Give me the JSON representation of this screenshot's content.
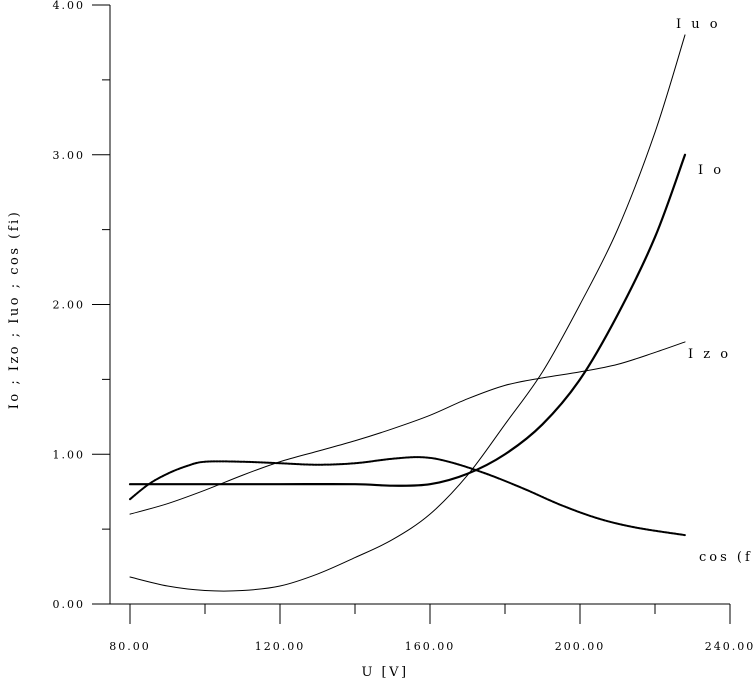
{
  "chart_data": {
    "type": "line",
    "title": "",
    "xlabel": "U [V]",
    "ylabel": "Io ; Izo ; Iuo ; cos (fi)",
    "xlim": [
      80,
      240
    ],
    "ylim": [
      0,
      4
    ],
    "xticks": [
      80,
      120,
      160,
      200,
      240
    ],
    "xtick_labels": [
      "80.00",
      "120.00",
      "160.00",
      "200.00",
      "240.00"
    ],
    "yticks": [
      0,
      1,
      2,
      3,
      4
    ],
    "ytick_labels": [
      "0.00",
      "1.00",
      "2.00",
      "3.00",
      "4.00"
    ],
    "grid": false,
    "series": [
      {
        "name": "Iuo",
        "width": "thin",
        "points": [
          [
            80,
            0.18
          ],
          [
            90,
            0.12
          ],
          [
            100,
            0.09
          ],
          [
            110,
            0.09
          ],
          [
            120,
            0.12
          ],
          [
            130,
            0.2
          ],
          [
            140,
            0.31
          ],
          [
            150,
            0.43
          ],
          [
            160,
            0.6
          ],
          [
            170,
            0.86
          ],
          [
            180,
            1.2
          ],
          [
            190,
            1.55
          ],
          [
            200,
            2.0
          ],
          [
            210,
            2.5
          ],
          [
            220,
            3.15
          ],
          [
            228,
            3.8
          ]
        ]
      },
      {
        "name": "Io",
        "width": "thick",
        "points": [
          [
            80,
            0.8
          ],
          [
            100,
            0.8
          ],
          [
            120,
            0.8
          ],
          [
            140,
            0.8
          ],
          [
            150,
            0.79
          ],
          [
            160,
            0.8
          ],
          [
            170,
            0.87
          ],
          [
            180,
            1.0
          ],
          [
            190,
            1.2
          ],
          [
            200,
            1.5
          ],
          [
            210,
            1.93
          ],
          [
            220,
            2.45
          ],
          [
            228,
            3.0
          ]
        ]
      },
      {
        "name": "Izo",
        "width": "thin",
        "points": [
          [
            80,
            0.6
          ],
          [
            90,
            0.67
          ],
          [
            100,
            0.76
          ],
          [
            110,
            0.86
          ],
          [
            120,
            0.95
          ],
          [
            130,
            1.02
          ],
          [
            140,
            1.09
          ],
          [
            150,
            1.17
          ],
          [
            160,
            1.26
          ],
          [
            170,
            1.37
          ],
          [
            180,
            1.46
          ],
          [
            190,
            1.51
          ],
          [
            200,
            1.55
          ],
          [
            210,
            1.6
          ],
          [
            220,
            1.68
          ],
          [
            228,
            1.75
          ]
        ]
      },
      {
        "name": "cos (fi)",
        "width": "dotted-thick",
        "points": [
          [
            80,
            0.7
          ],
          [
            85,
            0.8
          ],
          [
            90,
            0.87
          ],
          [
            95,
            0.92
          ],
          [
            100,
            0.95
          ],
          [
            110,
            0.95
          ],
          [
            120,
            0.94
          ],
          [
            130,
            0.93
          ],
          [
            140,
            0.94
          ],
          [
            150,
            0.97
          ],
          [
            158,
            0.98
          ],
          [
            165,
            0.95
          ],
          [
            175,
            0.87
          ],
          [
            185,
            0.77
          ],
          [
            195,
            0.66
          ],
          [
            205,
            0.57
          ],
          [
            215,
            0.51
          ],
          [
            228,
            0.46
          ]
        ]
      }
    ],
    "labels": [
      {
        "series": "Iuo",
        "text": "I u o"
      },
      {
        "series": "Io",
        "text": "I o"
      },
      {
        "series": "Izo",
        "text": "I z o"
      },
      {
        "series": "cos (fi)",
        "text": "cos (fi)"
      }
    ]
  }
}
